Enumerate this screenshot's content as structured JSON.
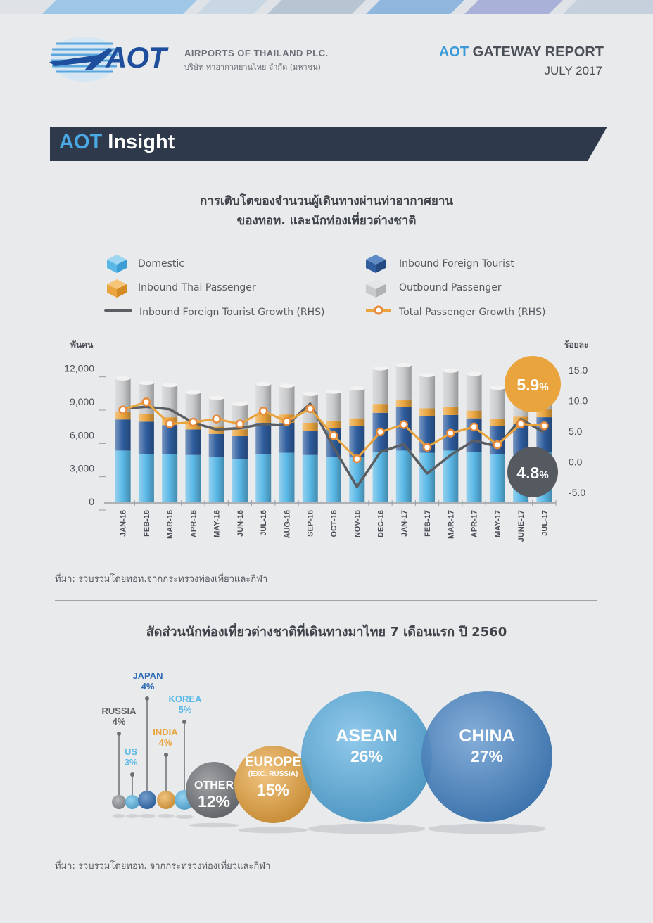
{
  "header": {
    "company_en": "AIRPORTS OF THAILAND PLC.",
    "company_th": "บริษัท ท่าอากาศยานไทย จำกัด (มหาชน)",
    "logo_text": "AOT",
    "report_aot": "AOT",
    "report_rest": "GATEWAY REPORT",
    "report_date": "JULY 2017"
  },
  "section": {
    "aot": "AOT",
    "title": "Insight"
  },
  "chart1": {
    "title_line1": "การเติบโตของจำนวนผู้เดินทางผ่านท่าอากาศยาน",
    "title_line2": "ของทอท. และนักท่องเที่ยวต่างชาติ",
    "source": "ที่มา: รวบรวมโดยทอท.จากกระทรวงท่องเที่ยวและกีฬา"
  },
  "legend": {
    "domestic": "Domestic",
    "inbound_foreign": "Inbound Foreign Tourist",
    "inbound_thai": "Inbound Thai Passenger",
    "outbound": "Outbound Passenger",
    "foreign_growth": "Inbound Foreign Tourist Growth (RHS)",
    "total_growth": "Total Passenger Growth (RHS)"
  },
  "colors": {
    "domestic": "#5ab8e6",
    "inbound_foreign": "#2f5d9e",
    "inbound_thai": "#e9a43d",
    "outbound": "#c9cacc",
    "total_growth": "#e88a3a",
    "foreign_growth": "#5a5e63",
    "navy": "#2e3a4c",
    "accent_blue": "#3a9ad9"
  },
  "chart_data": [
    {
      "type": "bar",
      "stacked": true,
      "y_left_unit": "พันคน",
      "y_right_unit": "ร้อยละ",
      "categories": [
        "JAN-16",
        "FEB-16",
        "MAR-16",
        "APR-16",
        "MAY-16",
        "JUN-16",
        "JUL-16",
        "AUG-16",
        "SEP-16",
        "OCT-16",
        "NOV-16",
        "DEC-16",
        "JAN-17",
        "FEB-17",
        "MAR-17",
        "APR-17",
        "MAY-17",
        "JUNE-17",
        "JUL-17"
      ],
      "y_left_ticks": [
        "0",
        "3,000",
        "6,000",
        "9,000",
        "12,000"
      ],
      "y_right_ticks": [
        "-5.0",
        "0.0",
        "5.0",
        "10.0",
        "15.0"
      ],
      "ylim": [
        0,
        13500
      ],
      "y2lim": [
        -6.5,
        18
      ],
      "series": [
        {
          "name": "Domestic",
          "values": [
            4600,
            4300,
            4300,
            4200,
            4000,
            3800,
            4300,
            4400,
            4200,
            4000,
            4000,
            4500,
            4600,
            4400,
            4600,
            4500,
            4300,
            4300,
            4500
          ]
        },
        {
          "name": "Inbound Foreign Tourist",
          "values": [
            2800,
            2900,
            2600,
            2300,
            2100,
            2100,
            2800,
            2700,
            2200,
            2600,
            2800,
            3500,
            3900,
            3300,
            3200,
            3000,
            2500,
            2700,
            3100
          ]
        },
        {
          "name": "Inbound Thai Passenger",
          "values": [
            700,
            700,
            700,
            650,
            650,
            600,
            800,
            750,
            700,
            700,
            700,
            800,
            700,
            700,
            700,
            700,
            650,
            650,
            700
          ]
        },
        {
          "name": "Outbound Passenger",
          "values": [
            3000,
            2800,
            2900,
            2700,
            2600,
            2300,
            2700,
            2600,
            2600,
            2600,
            2700,
            3200,
            3100,
            3000,
            3300,
            3300,
            2800,
            3000,
            3300
          ]
        },
        {
          "name": "Inbound Foreign Tourist Growth (RHS)",
          "axis": "right",
          "values": [
            8.7,
            9.0,
            8.6,
            6.4,
            5.3,
            5.5,
            6.2,
            6.0,
            9.5,
            2.4,
            -4.1,
            1.6,
            2.9,
            -1.9,
            1.1,
            3.5,
            2.5,
            7.0,
            4.8
          ]
        },
        {
          "name": "Total Passenger Growth (RHS)",
          "axis": "right",
          "values": [
            8.5,
            9.8,
            6.2,
            6.5,
            7.0,
            6.2,
            8.3,
            6.6,
            8.7,
            4.3,
            0.5,
            4.9,
            6.1,
            2.4,
            4.7,
            5.7,
            2.8,
            6.2,
            5.9
          ]
        }
      ],
      "callouts": {
        "total_growth": "5.9",
        "foreign_growth": "4.8",
        "unit": "%"
      }
    },
    {
      "type": "bubble",
      "title": "สัดส่วนนักท่องเที่ยวต่างชาติที่เดินทางมาไทย 7 เดือนแรก ปี 2560",
      "items": [
        {
          "name": "RUSSIA",
          "value": "4%",
          "num": 4,
          "color": "#8e9297",
          "label_color": "#5c6067"
        },
        {
          "name": "US",
          "value": "3%",
          "num": 3,
          "color": "#5ab8e6",
          "label_color": "#5ab8e6"
        },
        {
          "name": "JAPAN",
          "value": "4%",
          "num": 4,
          "color": "#2f6cb3",
          "label_color": "#2f6cb3"
        },
        {
          "name": "INDIA",
          "value": "4%",
          "num": 4,
          "color": "#e9a43d",
          "label_color": "#e9a43d"
        },
        {
          "name": "KOREA",
          "value": "5%",
          "num": 5,
          "color": "#5ab8e6",
          "label_color": "#5ab8e6"
        },
        {
          "name": "OTHER",
          "value": "12%",
          "num": 12,
          "color": "#6e7277"
        },
        {
          "name": "EUROPE",
          "sub": "(EXC. RUSSIA)",
          "value": "15%",
          "num": 15,
          "color": "#e9a43d"
        },
        {
          "name": "ASEAN",
          "value": "26%",
          "num": 26,
          "color": "#4aa8e0"
        },
        {
          "name": "CHINA",
          "value": "27%",
          "num": 27,
          "color": "#3479c2"
        }
      ],
      "source": "ที่มา: รวบรวมโดยทอท. จากกระทรวงท่องเที่ยวและกีฬา"
    }
  ]
}
